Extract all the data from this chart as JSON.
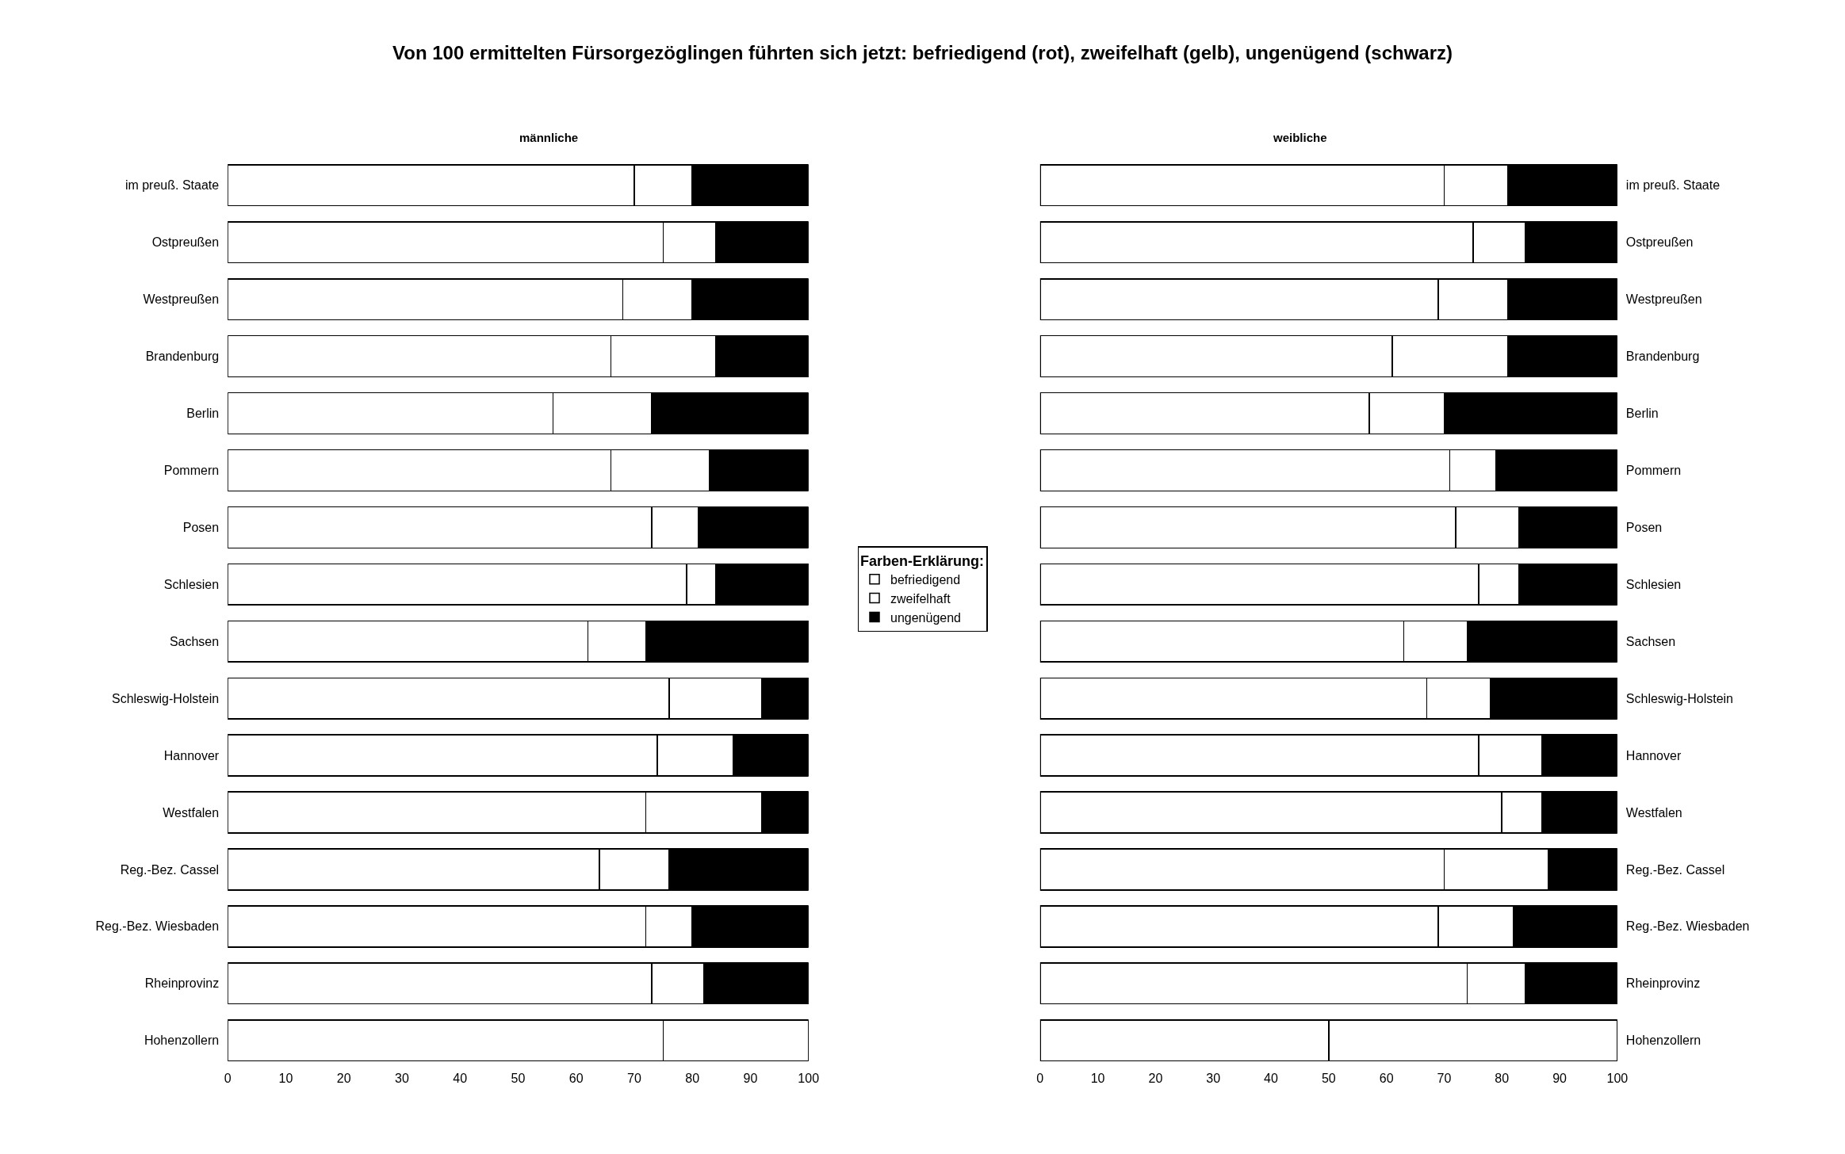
{
  "chart_data": [
    {
      "type": "bar",
      "orientation": "horizontal",
      "stacked": true,
      "title": "Von 100 ermittelten Fürsorgezöglingen führten sich jetzt: befriedigend (rot), zweifelhaft (gelb), ungenügend (schwarz)",
      "subtitle": "männliche",
      "legend": "right",
      "legend_title": "Farben-Erklärung:",
      "categories": [
        "im preuß. Staate",
        "Ostpreußen",
        "Westpreußen",
        "Brandenburg",
        "Berlin",
        "Pommern",
        "Posen",
        "Schlesien",
        "Sachsen",
        "Schleswig-Holstein",
        "Hannover",
        "Westfalen",
        "Reg.-Bez. Cassel",
        "Reg.-Bez. Wiesbaden",
        "Rheinprovinz",
        "Hohenzollern"
      ],
      "xlim": [
        0,
        100
      ],
      "xticks": [
        0,
        10,
        20,
        30,
        40,
        50,
        60,
        70,
        80,
        90,
        100
      ],
      "series": [
        {
          "name": "befriedigend",
          "color": "#ffffff",
          "values": [
            70,
            75,
            68,
            66,
            56,
            66,
            73,
            79,
            62,
            76,
            74,
            72,
            64,
            72,
            73,
            75
          ]
        },
        {
          "name": "zweifelhaft",
          "color": "#ffffff",
          "values": [
            10,
            9,
            12,
            18,
            17,
            17,
            8,
            5,
            10,
            16,
            13,
            20,
            12,
            8,
            9,
            25
          ]
        },
        {
          "name": "ungenügend",
          "color": "#000000",
          "values": [
            20,
            16,
            20,
            16,
            27,
            17,
            19,
            16,
            28,
            8,
            13,
            8,
            24,
            20,
            18,
            0
          ]
        }
      ]
    },
    {
      "type": "bar",
      "orientation": "horizontal",
      "stacked": true,
      "subtitle": "weibliche",
      "categories": [
        "im preuß. Staate",
        "Ostpreußen",
        "Westpreußen",
        "Brandenburg",
        "Berlin",
        "Pommern",
        "Posen",
        "Schlesien",
        "Sachsen",
        "Schleswig-Holstein",
        "Hannover",
        "Westfalen",
        "Reg.-Bez. Cassel",
        "Reg.-Bez. Wiesbaden",
        "Rheinprovinz",
        "Hohenzollern"
      ],
      "xlim": [
        0,
        100
      ],
      "xticks": [
        0,
        10,
        20,
        30,
        40,
        50,
        60,
        70,
        80,
        90,
        100
      ],
      "series": [
        {
          "color": "#ffffff",
          "values": [
            70,
            75,
            69,
            61,
            57,
            71,
            72,
            76,
            63,
            67,
            76,
            80,
            70,
            69,
            74,
            50
          ]
        },
        {
          "color": "#ffffff",
          "values": [
            11,
            9,
            12,
            20,
            13,
            8,
            11,
            7,
            11,
            11,
            11,
            7,
            18,
            13,
            10,
            50
          ]
        },
        {
          "color": "#000000",
          "values": [
            19,
            16,
            19,
            19,
            30,
            21,
            17,
            17,
            26,
            22,
            13,
            13,
            12,
            18,
            16,
            0
          ]
        }
      ]
    }
  ]
}
